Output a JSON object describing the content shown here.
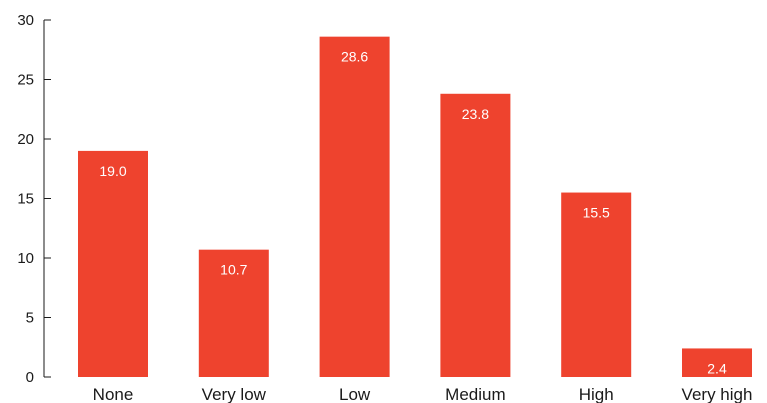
{
  "chart_data": {
    "type": "bar",
    "title": "",
    "xlabel": "",
    "ylabel": "",
    "categories": [
      "None",
      "Very low",
      "Low",
      "Medium",
      "High",
      "Very high"
    ],
    "values": [
      19.0,
      10.7,
      28.6,
      23.8,
      15.5,
      2.4
    ],
    "data_labels": [
      "19.0",
      "10.7",
      "28.6",
      "23.8",
      "15.5",
      "2.4"
    ],
    "ylim": [
      0,
      30
    ],
    "yticks": [
      0,
      5,
      10,
      15,
      20,
      25,
      30
    ],
    "ytick_labels": [
      "0",
      "5",
      "10",
      "15",
      "20",
      "25",
      "30"
    ],
    "grid": false,
    "legend": "none",
    "colors": {
      "bar": "#EE432E",
      "axis": "#1a1a1a",
      "data_label_text": "#ffffff"
    }
  }
}
